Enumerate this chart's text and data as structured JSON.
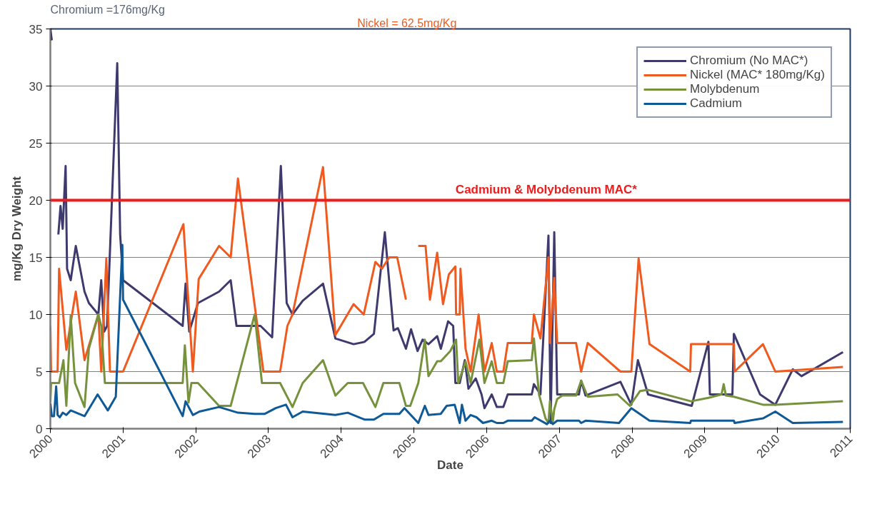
{
  "chart_data": {
    "type": "line",
    "xlabel": "Date",
    "ylabel": "mg/Kg Dry Weight",
    "xlim": [
      2000,
      2011
    ],
    "xticks": [
      2000,
      2001,
      2002,
      2003,
      2004,
      2005,
      2006,
      2007,
      2008,
      2009,
      2010,
      2011
    ],
    "ylim": [
      0,
      35
    ],
    "yticks": [
      0,
      5,
      10,
      15,
      20,
      25,
      30,
      35
    ],
    "grid": "y",
    "legend": "top right",
    "line_style": "solid",
    "marker": "none",
    "ref_lines": [
      {
        "axis": "y",
        "value": 20,
        "label": "Cadmium & Molybdenum MAC*",
        "color": "#ee1c1c"
      }
    ],
    "annotations": [
      "Chromium =176mg/Kg",
      "Nickel = 62.5mg/Kg"
    ],
    "series": [
      {
        "name": "Chromium (No MAC*)",
        "color": "#3f3a6e",
        "x": [
          2000.0,
          2000.02,
          2000.06,
          2000.11,
          2000.14,
          2000.17,
          2000.21,
          2000.23,
          2000.28,
          2000.35,
          2000.47,
          2000.53,
          2000.66,
          2000.7,
          2000.74,
          2000.78,
          2000.92,
          2000.96,
          2001.0,
          2001.82,
          2001.86,
          2001.91,
          2002.03,
          2002.32,
          2002.48,
          2002.56,
          2002.89,
          2003.05,
          2003.17,
          2003.25,
          2003.33,
          2003.47,
          2003.75,
          2003.92,
          2004.17,
          2004.32,
          2004.45,
          2004.6,
          2004.72,
          2004.78,
          2004.89,
          2004.96,
          2005.05,
          2005.12,
          2005.2,
          2005.32,
          2005.37,
          2005.47,
          2005.54,
          2005.57,
          2005.63,
          2005.7,
          2005.75,
          2005.85,
          2005.93,
          2005.97,
          2006.07,
          2006.14,
          2006.23,
          2006.29,
          2006.62,
          2006.65,
          2006.74,
          2006.85,
          2006.88,
          2006.93,
          2006.97,
          2007.27,
          2007.3,
          2007.36,
          2007.84,
          2007.99,
          2008.08,
          2008.22,
          2008.82,
          2009.05,
          2009.07,
          2009.38,
          2009.4,
          2009.76,
          2009.97,
          2010.21,
          2010.33,
          2010.9
        ],
        "values": [
          35,
          34,
          null,
          17,
          19.5,
          17.5,
          23,
          14,
          13,
          16,
          12,
          11,
          10,
          13,
          8.5,
          9,
          32,
          17,
          13,
          9,
          12.7,
          8.5,
          11,
          12,
          13,
          9,
          9,
          8,
          23,
          11,
          10,
          11.2,
          12.7,
          7.9,
          7.4,
          7.6,
          8.3,
          17.2,
          8.6,
          8.8,
          7,
          8.7,
          6.8,
          7.8,
          7.4,
          8.1,
          7,
          9.4,
          9,
          4,
          4,
          6,
          3.5,
          4.4,
          3,
          1.8,
          3,
          1.9,
          1.9,
          3,
          3,
          3.9,
          3,
          16.9,
          0.5,
          17.2,
          3,
          3,
          4.2,
          2.9,
          4.1,
          2.1,
          6,
          3,
          2,
          7.6,
          3,
          3,
          8.3,
          3,
          2.1,
          5.2,
          4.6,
          6.7
        ]
      },
      {
        "name": "Nickel (MAC* 180mg/Kg)",
        "color": "#f05a1e",
        "x": [
          2000.0,
          2000.01,
          2000.1,
          2000.12,
          2000.22,
          2000.35,
          2000.47,
          2000.66,
          2000.7,
          2000.77,
          2000.82,
          2001.0,
          2001.83,
          2001.96,
          2002.04,
          2002.32,
          2002.48,
          2002.58,
          2002.93,
          2003.16,
          2003.26,
          2003.33,
          2003.75,
          2003.92,
          2004.17,
          2004.31,
          2004.47,
          2004.56,
          2004.66,
          2004.77,
          2004.89,
          2004.98,
          2005.06,
          2005.16,
          2005.22,
          2005.32,
          2005.4,
          2005.48,
          2005.57,
          2005.58,
          2005.63,
          2005.64,
          2005.71,
          2005.78,
          2005.89,
          2005.97,
          2006.07,
          2006.14,
          2006.23,
          2006.29,
          2006.62,
          2006.65,
          2006.74,
          2006.85,
          2006.87,
          2006.93,
          2006.97,
          2007.23,
          2007.3,
          2007.39,
          2007.84,
          2007.99,
          2008.09,
          2008.24,
          2008.8,
          2008.81,
          2009.4,
          2009.41,
          2009.8,
          2009.97,
          2010.9
        ],
        "values": [
          9,
          5,
          5,
          14,
          6.9,
          12,
          6,
          10,
          5,
          14.9,
          5,
          5,
          17.9,
          5,
          13.1,
          16,
          15,
          21.9,
          5,
          5,
          9,
          10,
          22.9,
          8.2,
          10.9,
          10,
          14.6,
          14,
          15,
          15,
          11.3,
          null,
          16,
          16,
          11.3,
          15.4,
          10.9,
          13.5,
          14.2,
          10,
          10,
          14,
          7,
          5,
          10,
          5,
          7.5,
          5,
          5,
          7.5,
          7.5,
          10,
          7.9,
          15,
          7.5,
          13.2,
          7.5,
          7.5,
          5,
          7.5,
          5,
          5,
          14.9,
          7.4,
          5,
          7.4,
          7.4,
          5,
          7.4,
          5,
          5.4
        ]
      },
      {
        "name": "Molybdenum",
        "color": "#76923c",
        "x": [
          2000.0,
          2000.01,
          2000.12,
          2000.18,
          2000.22,
          2000.28,
          2000.34,
          2000.47,
          2000.53,
          2000.66,
          2000.7,
          2000.75,
          2001.82,
          2001.85,
          2001.9,
          2001.94,
          2002.03,
          2002.32,
          2002.48,
          2002.81,
          2002.91,
          2003.16,
          2003.33,
          2003.47,
          2003.75,
          2003.92,
          2004.09,
          2004.3,
          2004.47,
          2004.58,
          2004.8,
          2004.89,
          2004.95,
          2005.06,
          2005.15,
          2005.2,
          2005.32,
          2005.37,
          2005.5,
          2005.58,
          2005.61,
          2005.71,
          2005.78,
          2005.9,
          2005.97,
          2006.07,
          2006.14,
          2006.23,
          2006.29,
          2006.62,
          2006.65,
          2006.72,
          2006.81,
          2006.85,
          2006.87,
          2006.91,
          2006.93,
          2006.97,
          2007.04,
          2007.23,
          2007.3,
          2007.39,
          2007.8,
          2007.97,
          2008.11,
          2008.22,
          2008.81,
          2009.05,
          2009.23,
          2009.26,
          2009.29,
          2009.4,
          2009.8,
          2009.97,
          2010.9
        ],
        "values": [
          2.3,
          4,
          4,
          6,
          2,
          9.9,
          4,
          1.9,
          7,
          10,
          9,
          4,
          4,
          7.3,
          2.3,
          4,
          4,
          2,
          2,
          10,
          4,
          4,
          1.9,
          4,
          6,
          2.9,
          4,
          4,
          1.9,
          4,
          4,
          2,
          2,
          4,
          7.8,
          4.6,
          5.9,
          5.9,
          6.8,
          7.8,
          4,
          5.9,
          4,
          7.8,
          4,
          5.9,
          4,
          4,
          5.9,
          6,
          7.9,
          3,
          0.9,
          0.5,
          2.4,
          0.6,
          1.7,
          2.6,
          2.9,
          2.9,
          4.2,
          2.8,
          3,
          2,
          3.3,
          3.4,
          2.4,
          2.7,
          3,
          3.9,
          2.9,
          2.8,
          2.1,
          2.1,
          2.4
        ]
      },
      {
        "name": "Cadmium",
        "color": "#0f5a96",
        "x": [
          2000.0,
          2000.02,
          2000.05,
          2000.08,
          2000.1,
          2000.13,
          2000.17,
          2000.22,
          2000.28,
          2000.47,
          2000.65,
          2000.79,
          2000.9,
          2000.99,
          2001.0,
          2001.82,
          2001.86,
          2001.96,
          2002.05,
          2002.32,
          2002.58,
          2002.81,
          2002.95,
          2003.1,
          2003.24,
          2003.33,
          2003.47,
          2003.92,
          2004.09,
          2004.32,
          2004.45,
          2004.58,
          2004.8,
          2004.87,
          2005.06,
          2005.15,
          2005.2,
          2005.37,
          2005.45,
          2005.56,
          2005.63,
          2005.66,
          2005.71,
          2005.78,
          2005.86,
          2005.95,
          2006.07,
          2006.14,
          2006.23,
          2006.29,
          2006.62,
          2006.66,
          2006.83,
          2006.87,
          2006.91,
          2006.97,
          2007.27,
          2007.3,
          2007.36,
          2007.82,
          2007.99,
          2008.24,
          2008.8,
          2008.81,
          2009.4,
          2009.41,
          2009.8,
          2009.97,
          2010.21,
          2010.9
        ],
        "values": [
          2.2,
          1.1,
          1.1,
          3.7,
          1.2,
          1.0,
          1.4,
          1.2,
          1.6,
          1.1,
          3,
          1.6,
          2.8,
          16.1,
          11.3,
          1.1,
          2.4,
          1.2,
          1.5,
          1.9,
          1.4,
          1.3,
          1.3,
          1.8,
          2.1,
          1,
          1.5,
          1.2,
          1.4,
          0.8,
          0.8,
          1.3,
          1.3,
          1.8,
          0.5,
          2,
          1.2,
          1.3,
          2,
          2.1,
          0.5,
          2.1,
          0.7,
          1.2,
          1,
          0.5,
          0.7,
          0.5,
          0.5,
          0.7,
          0.7,
          1,
          0.4,
          0.7,
          0.4,
          0.7,
          0.7,
          0.5,
          0.7,
          0.5,
          1.8,
          0.7,
          0.5,
          0.7,
          0.7,
          0.5,
          0.9,
          1.5,
          0.5,
          0.6
        ]
      }
    ]
  }
}
